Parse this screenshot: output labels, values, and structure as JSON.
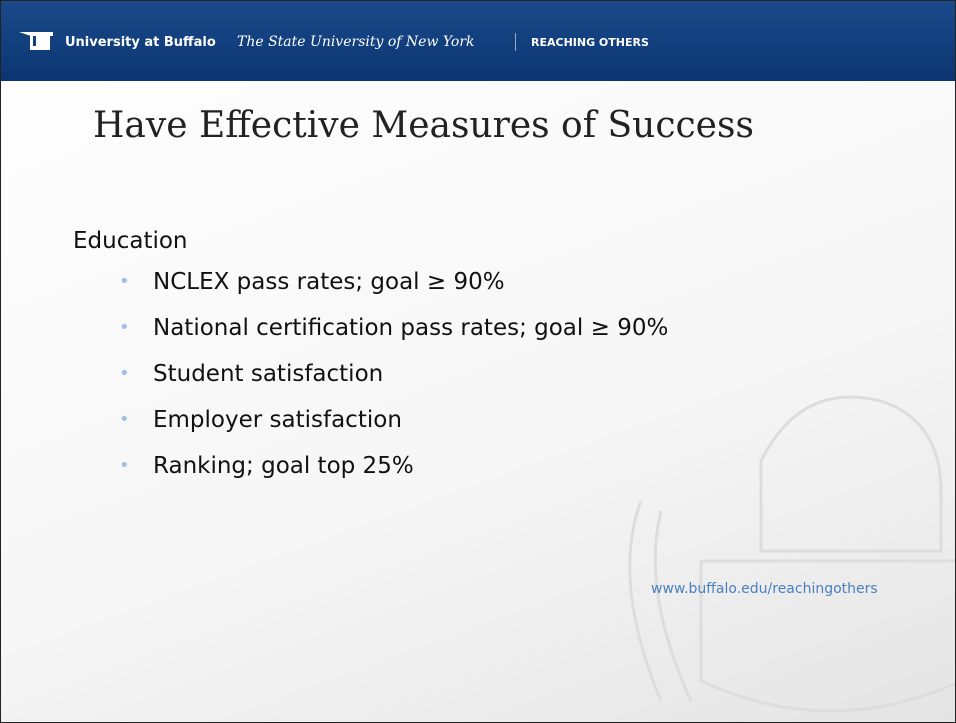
{
  "header": {
    "brand": "University at Buffalo",
    "subtitle": "The State University of New York",
    "tagline": "REACHING OTHERS"
  },
  "title": "Have Effective Measures of Success",
  "section": "Education",
  "bullets": [
    "NCLEX pass rates; goal ≥ 90%",
    "National certification pass rates; goal ≥ 90%",
    "Student satisfaction",
    "Employer satisfaction",
    "Ranking;  goal top 25%"
  ],
  "footer": "www.buffalo.edu/reachingothers"
}
